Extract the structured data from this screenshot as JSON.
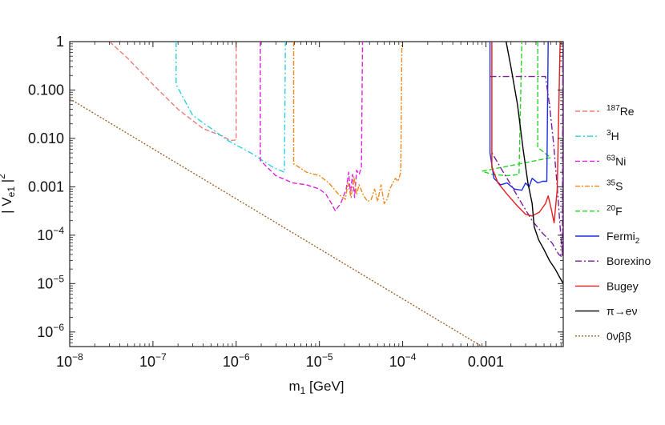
{
  "chart_data": {
    "type": "line",
    "xlabel": "m₁ [GeV]",
    "xlabel_parts": {
      "base": "m",
      "sub": "1",
      "rest": " [GeV]"
    },
    "ylabel": "| V_e1 |^2",
    "ylabel_parts": {
      "pre": "| V",
      "sub": "e1",
      "mid": " |",
      "sup": "2"
    },
    "x_scale": "log",
    "y_scale": "log",
    "xlim": [
      1e-08,
      0.0085
    ],
    "ylim": [
      5e-07,
      1
    ],
    "grid": false,
    "legend_position": "right",
    "x_ticks": [
      {
        "value": 1e-08,
        "base": "10",
        "exp": "−8",
        "text": ""
      },
      {
        "value": 1e-07,
        "base": "10",
        "exp": "−7",
        "text": ""
      },
      {
        "value": 1e-06,
        "base": "10",
        "exp": "−6",
        "text": ""
      },
      {
        "value": 1e-05,
        "base": "10",
        "exp": "−5",
        "text": ""
      },
      {
        "value": 0.0001,
        "base": "10",
        "exp": "−4",
        "text": ""
      },
      {
        "value": 0.001,
        "base": "",
        "exp": "",
        "text": "0.001"
      }
    ],
    "y_ticks": [
      {
        "value": 1,
        "base": "",
        "exp": "",
        "text": "1"
      },
      {
        "value": 0.1,
        "base": "",
        "exp": "",
        "text": "0.100"
      },
      {
        "value": 0.01,
        "base": "",
        "exp": "",
        "text": "0.010"
      },
      {
        "value": 0.001,
        "base": "",
        "exp": "",
        "text": "0.001"
      },
      {
        "value": 0.0001,
        "base": "10",
        "exp": "−4",
        "text": ""
      },
      {
        "value": 1e-05,
        "base": "10",
        "exp": "−5",
        "text": ""
      },
      {
        "value": 1e-06,
        "base": "10",
        "exp": "−6",
        "text": ""
      }
    ],
    "series": [
      {
        "name": "187Re",
        "label_sup": "187",
        "label_base": "Re",
        "label_sub": "",
        "color": "#f07c7c",
        "dash": "6,3",
        "points": [
          [
            3e-08,
            1
          ],
          [
            5e-08,
            0.45
          ],
          [
            1e-07,
            0.13
          ],
          [
            2e-07,
            0.04
          ],
          [
            4e-07,
            0.016
          ],
          [
            7e-07,
            0.011
          ],
          [
            8.5e-07,
            0.009
          ],
          [
            1e-06,
            0.0093
          ],
          [
            1e-06,
            1
          ]
        ]
      },
      {
        "name": "3H",
        "label_sup": "3",
        "label_base": "H",
        "label_sub": "",
        "color": "#27d4dd",
        "dash": "7,3,2,3",
        "points": [
          [
            1.9e-07,
            1
          ],
          [
            1.9e-07,
            0.13
          ],
          [
            3e-07,
            0.03
          ],
          [
            8e-07,
            0.009
          ],
          [
            1.5e-06,
            0.005
          ],
          [
            2.8e-06,
            0.0025
          ],
          [
            3.8e-06,
            0.002
          ],
          [
            3.9e-06,
            1
          ]
        ]
      },
      {
        "name": "63Ni",
        "label_sup": "63",
        "label_base": "Ni",
        "label_sub": "",
        "color": "#e022dc",
        "dash": "6,3",
        "points": [
          [
            1.95e-06,
            1
          ],
          [
            1.95e-06,
            0.0035
          ],
          [
            3e-06,
            0.0017
          ],
          [
            4.8e-06,
            0.0012
          ],
          [
            7e-06,
            0.0011
          ],
          [
            1e-05,
            0.0009
          ],
          [
            1.2e-05,
            0.0007
          ],
          [
            1.4e-05,
            0.00045
          ],
          [
            1.55e-05,
            0.00032
          ],
          [
            1.8e-05,
            0.00045
          ],
          [
            2.1e-05,
            0.0009
          ],
          [
            2.25e-05,
            0.002
          ],
          [
            2.35e-05,
            0.0007
          ],
          [
            2.5e-05,
            0.0018
          ],
          [
            2.65e-05,
            0.0006
          ],
          [
            2.8e-05,
            0.0022
          ],
          [
            3e-05,
            0.0018
          ],
          [
            3.2e-05,
            0.0025
          ],
          [
            3.3e-05,
            1
          ]
        ]
      },
      {
        "name": "35S",
        "label_sup": "35",
        "label_base": "S",
        "label_sub": "",
        "color": "#f08a1e",
        "dash": "6,2,2,2",
        "points": [
          [
            4.9e-06,
            1
          ],
          [
            4.9e-06,
            0.003
          ],
          [
            7e-06,
            0.002
          ],
          [
            1e-05,
            0.0017
          ],
          [
            1.3e-05,
            0.0012
          ],
          [
            1.7e-05,
            0.0007
          ],
          [
            2.05e-05,
            0.00055
          ],
          [
            2.2e-05,
            0.0012
          ],
          [
            2.4e-05,
            0.0006
          ],
          [
            2.6e-05,
            0.0016
          ],
          [
            2.8e-05,
            0.0007
          ],
          [
            3e-05,
            0.0011
          ],
          [
            3.4e-05,
            0.00065
          ],
          [
            3.8e-05,
            0.0005
          ],
          [
            4.2e-05,
            0.00055
          ],
          [
            4.6e-05,
            0.0009
          ],
          [
            5e-05,
            0.0005
          ],
          [
            5.5e-05,
            0.0011
          ],
          [
            6e-05,
            0.00045
          ],
          [
            6.5e-05,
            0.00055
          ],
          [
            7e-05,
            0.0009
          ],
          [
            7.6e-05,
            0.0012
          ],
          [
            8.2e-05,
            0.0015
          ],
          [
            8.8e-05,
            0.0013
          ],
          [
            9.5e-05,
            0.002
          ],
          [
            9.8e-05,
            1
          ]
        ]
      },
      {
        "name": "20F",
        "label_sup": "20",
        "label_base": "F",
        "label_sub": "",
        "color": "#27d427",
        "dash": "6,3",
        "points": [
          [
            0.0042,
            1
          ],
          [
            0.0042,
            0.0065
          ],
          [
            0.006,
            0.004
          ],
          [
            0.0009,
            0.0021
          ],
          [
            0.0012,
            0.0018
          ],
          [
            0.0018,
            0.0017
          ],
          [
            0.0025,
            0.0018
          ],
          [
            0.0027,
            1
          ]
        ]
      },
      {
        "name": "Fermi2",
        "label_sup": "",
        "label_base": "Fermi",
        "label_sub": "2",
        "color": "#1a2ee0",
        "dash": "",
        "points": [
          [
            0.00112,
            1
          ],
          [
            0.00112,
            0.005
          ],
          [
            0.00125,
            0.0015
          ],
          [
            0.0015,
            0.0011
          ],
          [
            0.0018,
            0.0012
          ],
          [
            0.0022,
            0.0009
          ],
          [
            0.0027,
            0.00085
          ],
          [
            0.003,
            0.0012
          ],
          [
            0.0033,
            0.001
          ],
          [
            0.0036,
            0.0015
          ],
          [
            0.0042,
            0.0012
          ],
          [
            0.0048,
            0.0013
          ],
          [
            0.0054,
            0.0013
          ],
          [
            0.0056,
            1
          ]
        ]
      },
      {
        "name": "Borexino",
        "label_sup": "",
        "label_base": "Borexino",
        "label_sub": "",
        "color": "#7a1e9c",
        "dash": "8,3,2,3",
        "points": [
          [
            0.00112,
            0.19
          ],
          [
            0.0052,
            0.19
          ],
          [
            0.0058,
            0.05
          ],
          [
            0.0065,
            0.008
          ],
          [
            0.0072,
            0.001
          ],
          [
            0.0078,
            0.00015
          ],
          [
            0.0082,
            5e-05
          ],
          [
            0.0084,
            3.8e-05
          ],
          [
            0.0084,
            1
          ],
          [
            0.0083,
            3.5e-05
          ],
          [
            0.0075,
            4e-05
          ],
          [
            0.0062,
            7e-05
          ],
          [
            0.0048,
            0.00011
          ],
          [
            0.0036,
            0.0002
          ],
          [
            0.0027,
            0.00045
          ],
          [
            0.002,
            0.0011
          ],
          [
            0.0015,
            0.0025
          ],
          [
            0.00115,
            0.0055
          ]
        ]
      },
      {
        "name": "Bugey",
        "label_sup": "",
        "label_base": "Bugey",
        "label_sub": "",
        "color": "#e81c1c",
        "dash": "",
        "points": [
          [
            0.00118,
            1
          ],
          [
            0.00118,
            0.0025
          ],
          [
            0.0014,
            0.0012
          ],
          [
            0.0018,
            0.0007
          ],
          [
            0.0024,
            0.0004
          ],
          [
            0.003,
            0.00027
          ],
          [
            0.0036,
            0.00025
          ],
          [
            0.0044,
            0.0003
          ],
          [
            0.0052,
            0.00045
          ],
          [
            0.0056,
            0.00065
          ],
          [
            0.0061,
            0.00035
          ],
          [
            0.0066,
            0.00018
          ],
          [
            0.0072,
            0.0009
          ],
          [
            0.0078,
            1
          ]
        ]
      },
      {
        "name": "pi->ev",
        "label_sup": "",
        "label_base": "π→eν",
        "label_sub": "",
        "color": "#000000",
        "dash": "",
        "points": [
          [
            0.00175,
            1
          ],
          [
            0.002,
            0.3
          ],
          [
            0.0024,
            0.05
          ],
          [
            0.0028,
            0.006
          ],
          [
            0.0032,
            0.0012
          ],
          [
            0.0036,
            0.00045
          ],
          [
            0.0038,
            0.00015
          ],
          [
            0.0043,
            8e-05
          ],
          [
            0.005,
            5e-05
          ],
          [
            0.0058,
            3e-05
          ],
          [
            0.0068,
            2e-05
          ],
          [
            0.0076,
            1.4e-05
          ],
          [
            0.0085,
            1e-05
          ]
        ]
      },
      {
        "name": "0vbb",
        "label_sup": "",
        "label_base": "0νββ",
        "label_sub": "",
        "color": "#a0642a",
        "dash": "2,2",
        "points": [
          [
            1e-08,
            0.066
          ],
          [
            0.0009,
            5e-07
          ]
        ]
      }
    ]
  }
}
